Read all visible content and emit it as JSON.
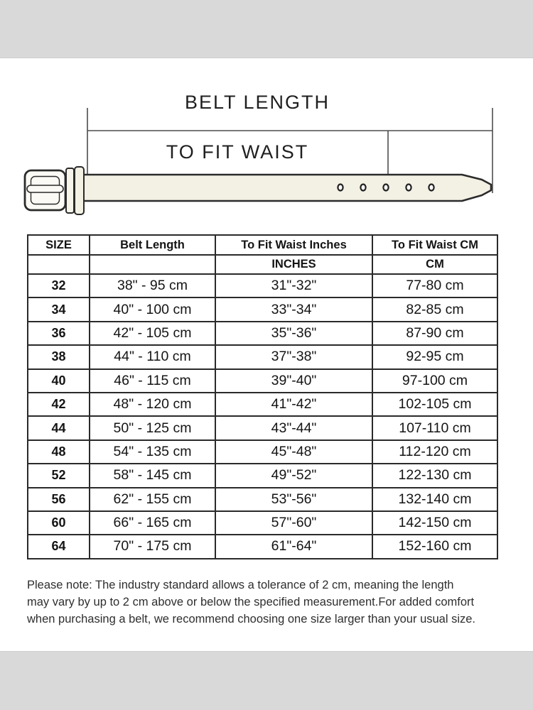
{
  "colors": {
    "band": "#d9d9d9",
    "belt_fill": "#f3f0e4",
    "buckle_fill": "#fbfaf5",
    "outline": "#2b2b2b",
    "measure_line": "#4d4d4d"
  },
  "diagram": {
    "belt_length_label": "BELT LENGTH",
    "to_fit_waist_label": "TO FIT WAIST",
    "hole_count": 5
  },
  "table": {
    "headers": [
      "SIZE",
      "Belt Length",
      "To Fit Waist Inches",
      "To Fit Waist CM"
    ],
    "subheaders": [
      "",
      "",
      "INCHES",
      "CM"
    ],
    "rows": [
      [
        "32",
        "38\" - 95 cm",
        "31\"-32\"",
        "77-80 cm"
      ],
      [
        "34",
        "40\" - 100 cm",
        "33\"-34\"",
        "82-85 cm"
      ],
      [
        "36",
        "42\" - 105 cm",
        "35\"-36\"",
        "87-90 cm"
      ],
      [
        "38",
        "44\" - 110 cm",
        "37\"-38\"",
        "92-95 cm"
      ],
      [
        "40",
        "46\" - 115 cm",
        "39\"-40\"",
        "97-100 cm"
      ],
      [
        "42",
        "48\" - 120 cm",
        "41\"-42\"",
        "102-105 cm"
      ],
      [
        "44",
        "50\" - 125 cm",
        "43\"-44\"",
        "107-110 cm"
      ],
      [
        "48",
        "54\" - 135 cm",
        "45\"-48\"",
        "112-120 cm"
      ],
      [
        "52",
        "58\" - 145 cm",
        "49\"-52\"",
        "122-130 cm"
      ],
      [
        "56",
        "62\" - 155 cm",
        "53\"-56\"",
        "132-140 cm"
      ],
      [
        "60",
        "66\" - 165 cm",
        "57\"-60\"",
        "142-150 cm"
      ],
      [
        "64",
        "70\" - 175 cm",
        "61\"-64\"",
        "152-160 cm"
      ]
    ]
  },
  "note": {
    "lines": [
      "Please note: The industry standard allows a tolerance of 2 cm, meaning the length",
      "may vary by up to 2 cm above or below the specified measurement.For added comfort",
      "when purchasing a belt, we recommend choosing one size larger than your usual size."
    ]
  }
}
